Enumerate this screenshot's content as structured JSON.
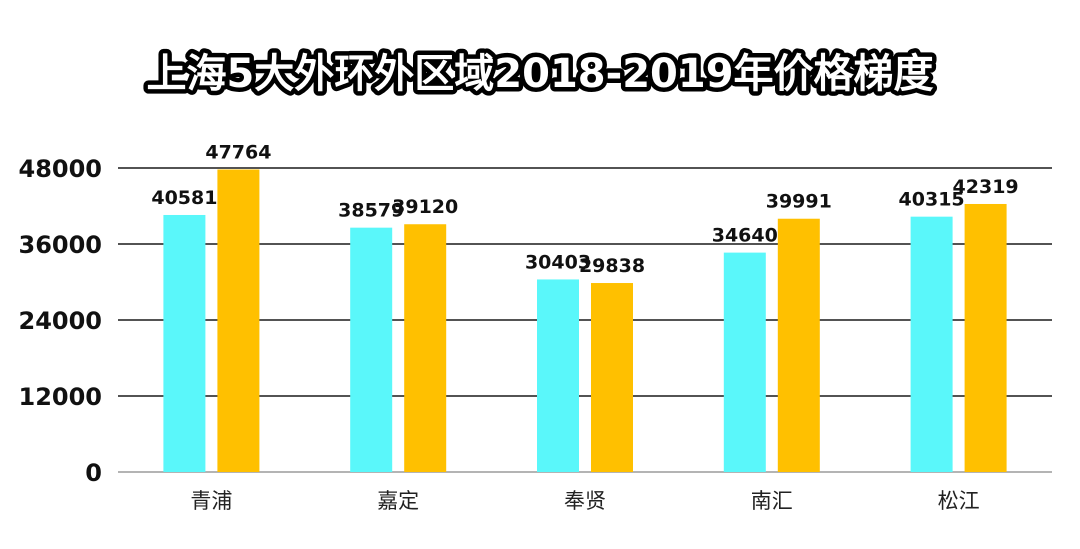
{
  "chart_data": {
    "type": "bar",
    "title": "上海5大外环外区域2018-2019年价格梯度",
    "categories": [
      "青浦",
      "嘉定",
      "奉贤",
      "南汇",
      "松江"
    ],
    "series": [
      {
        "values": [
          40581,
          38579,
          30403,
          34640,
          40315
        ],
        "color": "#5af7fa"
      },
      {
        "values": [
          47764,
          39120,
          29838,
          39991,
          42319
        ],
        "color": "#ffc000"
      }
    ],
    "yticks": [
      "0",
      "12000",
      "24000",
      "36000",
      "48000"
    ],
    "ylim": [
      0,
      48000
    ],
    "grid": true,
    "xlabel": "",
    "ylabel": ""
  }
}
